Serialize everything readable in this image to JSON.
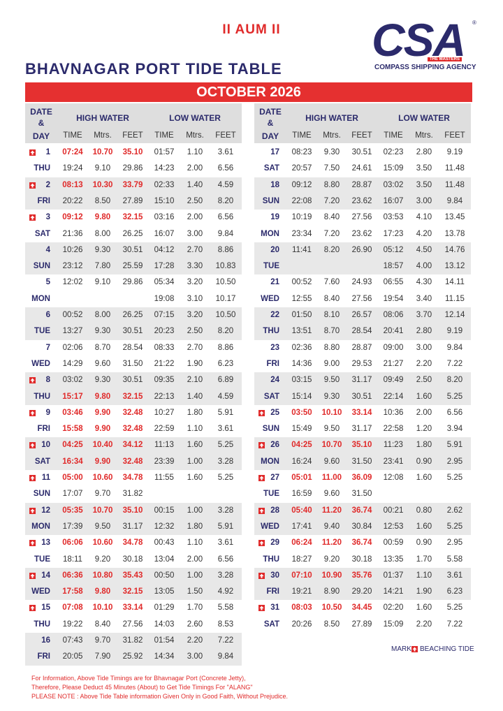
{
  "header": {
    "invocation": "II AUM II",
    "logo": {
      "mark": "CSA",
      "registered": "®",
      "tagline": "THE MASTERS",
      "company": "COMPASS SHIPPING AGENCY"
    },
    "title": "BHAVNAGAR PORT TIDE TABLE",
    "month": "OCTOBER 2026"
  },
  "table": {
    "columns": {
      "date": "DATE",
      "amp": "&",
      "day": "DAY",
      "high_water": "HIGH WATER",
      "low_water": "LOW WATER",
      "time": "TIME",
      "mtrs": "Mtrs.",
      "feet": "FEET"
    },
    "halves": [
      {
        "days": [
          {
            "date": "1",
            "day": "THU",
            "beaching": true,
            "highlight": [
              true,
              false
            ],
            "rows": [
              [
                "07:24",
                "10.70",
                "35.10",
                "01:57",
                "1.10",
                "3.61"
              ],
              [
                "19:24",
                "9.10",
                "29.86",
                "14:23",
                "2.00",
                "6.56"
              ]
            ]
          },
          {
            "date": "2",
            "day": "FRI",
            "beaching": true,
            "highlight": [
              true,
              false
            ],
            "rows": [
              [
                "08:13",
                "10.30",
                "33.79",
                "02:33",
                "1.40",
                "4.59"
              ],
              [
                "20:22",
                "8.50",
                "27.89",
                "15:10",
                "2.50",
                "8.20"
              ]
            ]
          },
          {
            "date": "3",
            "day": "SAT",
            "beaching": true,
            "highlight": [
              true,
              false
            ],
            "rows": [
              [
                "09:12",
                "9.80",
                "32.15",
                "03:16",
                "2.00",
                "6.56"
              ],
              [
                "21:36",
                "8.00",
                "26.25",
                "16:07",
                "3.00",
                "9.84"
              ]
            ]
          },
          {
            "date": "4",
            "day": "SUN",
            "beaching": false,
            "highlight": [
              false,
              false
            ],
            "rows": [
              [
                "10:26",
                "9.30",
                "30.51",
                "04:12",
                "2.70",
                "8.86"
              ],
              [
                "23:12",
                "7.80",
                "25.59",
                "17:28",
                "3.30",
                "10.83"
              ]
            ]
          },
          {
            "date": "5",
            "day": "MON",
            "beaching": false,
            "highlight": [
              false,
              false
            ],
            "rows": [
              [
                "12:02",
                "9.10",
                "29.86",
                "05:34",
                "3.20",
                "10.50"
              ],
              [
                null,
                null,
                null,
                "19:08",
                "3.10",
                "10.17"
              ]
            ]
          },
          {
            "date": "6",
            "day": "TUE",
            "beaching": false,
            "highlight": [
              false,
              false
            ],
            "rows": [
              [
                "00:52",
                "8.00",
                "26.25",
                "07:15",
                "3.20",
                "10.50"
              ],
              [
                "13:27",
                "9.30",
                "30.51",
                "20:23",
                "2.50",
                "8.20"
              ]
            ]
          },
          {
            "date": "7",
            "day": "WED",
            "beaching": false,
            "highlight": [
              false,
              false
            ],
            "rows": [
              [
                "02:06",
                "8.70",
                "28.54",
                "08:33",
                "2.70",
                "8.86"
              ],
              [
                "14:29",
                "9.60",
                "31.50",
                "21:22",
                "1.90",
                "6.23"
              ]
            ]
          },
          {
            "date": "8",
            "day": "THU",
            "beaching": true,
            "highlight": [
              false,
              true
            ],
            "rows": [
              [
                "03:02",
                "9.30",
                "30.51",
                "09:35",
                "2.10",
                "6.89"
              ],
              [
                "15:17",
                "9.80",
                "32.15",
                "22:13",
                "1.40",
                "4.59"
              ]
            ]
          },
          {
            "date": "9",
            "day": "FRI",
            "beaching": true,
            "highlight": [
              true,
              true
            ],
            "rows": [
              [
                "03:46",
                "9.90",
                "32.48",
                "10:27",
                "1.80",
                "5.91"
              ],
              [
                "15:58",
                "9.90",
                "32.48",
                "22:59",
                "1.10",
                "3.61"
              ]
            ]
          },
          {
            "date": "10",
            "day": "SAT",
            "beaching": true,
            "highlight": [
              true,
              true
            ],
            "rows": [
              [
                "04:25",
                "10.40",
                "34.12",
                "11:13",
                "1.60",
                "5.25"
              ],
              [
                "16:34",
                "9.90",
                "32.48",
                "23:39",
                "1.00",
                "3.28"
              ]
            ]
          },
          {
            "date": "11",
            "day": "SUN",
            "beaching": true,
            "highlight": [
              true,
              false
            ],
            "rows": [
              [
                "05:00",
                "10.60",
                "34.78",
                "11:55",
                "1.60",
                "5.25"
              ],
              [
                "17:07",
                "9.70",
                "31.82",
                null,
                null,
                null
              ]
            ]
          },
          {
            "date": "12",
            "day": "MON",
            "beaching": true,
            "highlight": [
              true,
              false
            ],
            "rows": [
              [
                "05:35",
                "10.70",
                "35.10",
                "00:15",
                "1.00",
                "3.28"
              ],
              [
                "17:39",
                "9.50",
                "31.17",
                "12:32",
                "1.80",
                "5.91"
              ]
            ]
          },
          {
            "date": "13",
            "day": "TUE",
            "beaching": true,
            "highlight": [
              true,
              false
            ],
            "rows": [
              [
                "06:06",
                "10.60",
                "34.78",
                "00:43",
                "1.10",
                "3.61"
              ],
              [
                "18:11",
                "9.20",
                "30.18",
                "13:04",
                "2.00",
                "6.56"
              ]
            ]
          },
          {
            "date": "14",
            "day": "WED",
            "beaching": true,
            "highlight": [
              true,
              true
            ],
            "rows": [
              [
                "06:36",
                "10.80",
                "35.43",
                "00:50",
                "1.00",
                "3.28"
              ],
              [
                "17:58",
                "9.80",
                "32.15",
                "13:05",
                "1.50",
                "4.92"
              ]
            ]
          },
          {
            "date": "15",
            "day": "THU",
            "beaching": true,
            "highlight": [
              true,
              false
            ],
            "rows": [
              [
                "07:08",
                "10.10",
                "33.14",
                "01:29",
                "1.70",
                "5.58"
              ],
              [
                "19:22",
                "8.40",
                "27.56",
                "14:03",
                "2.60",
                "8.53"
              ]
            ]
          },
          {
            "date": "16",
            "day": "FRI",
            "beaching": false,
            "highlight": [
              false,
              false
            ],
            "rows": [
              [
                "07:43",
                "9.70",
                "31.82",
                "01:54",
                "2.20",
                "7.22"
              ],
              [
                "20:05",
                "7.90",
                "25.92",
                "14:34",
                "3.00",
                "9.84"
              ]
            ]
          }
        ]
      },
      {
        "days": [
          {
            "date": "17",
            "day": "SAT",
            "beaching": false,
            "highlight": [
              false,
              false
            ],
            "rows": [
              [
                "08:23",
                "9.30",
                "30.51",
                "02:23",
                "2.80",
                "9.19"
              ],
              [
                "20:57",
                "7.50",
                "24.61",
                "15:09",
                "3.50",
                "11.48"
              ]
            ]
          },
          {
            "date": "18",
            "day": "SUN",
            "beaching": false,
            "highlight": [
              false,
              false
            ],
            "rows": [
              [
                "09:12",
                "8.80",
                "28.87",
                "03:02",
                "3.50",
                "11.48"
              ],
              [
                "22:08",
                "7.20",
                "23.62",
                "16:07",
                "3.00",
                "9.84"
              ]
            ]
          },
          {
            "date": "19",
            "day": "MON",
            "beaching": false,
            "highlight": [
              false,
              false
            ],
            "rows": [
              [
                "10:19",
                "8.40",
                "27.56",
                "03:53",
                "4.10",
                "13.45"
              ],
              [
                "23:34",
                "7.20",
                "23.62",
                "17:23",
                "4.20",
                "13.78"
              ]
            ]
          },
          {
            "date": "20",
            "day": "TUE",
            "beaching": false,
            "highlight": [
              false,
              false
            ],
            "rows": [
              [
                "11:41",
                "8.20",
                "26.90",
                "05:12",
                "4.50",
                "14.76"
              ],
              [
                null,
                null,
                null,
                "18:57",
                "4.00",
                "13.12"
              ]
            ]
          },
          {
            "date": "21",
            "day": "WED",
            "beaching": false,
            "highlight": [
              false,
              false
            ],
            "rows": [
              [
                "00:52",
                "7.60",
                "24.93",
                "06:55",
                "4.30",
                "14.11"
              ],
              [
                "12:55",
                "8.40",
                "27.56",
                "19:54",
                "3.40",
                "11.15"
              ]
            ]
          },
          {
            "date": "22",
            "day": "THU",
            "beaching": false,
            "highlight": [
              false,
              false
            ],
            "rows": [
              [
                "01:50",
                "8.10",
                "26.57",
                "08:06",
                "3.70",
                "12.14"
              ],
              [
                "13:51",
                "8.70",
                "28.54",
                "20:41",
                "2.80",
                "9.19"
              ]
            ]
          },
          {
            "date": "23",
            "day": "FRI",
            "beaching": false,
            "highlight": [
              false,
              false
            ],
            "rows": [
              [
                "02:36",
                "8.80",
                "28.87",
                "09:00",
                "3.00",
                "9.84"
              ],
              [
                "14:36",
                "9.00",
                "29.53",
                "21:27",
                "2.20",
                "7.22"
              ]
            ]
          },
          {
            "date": "24",
            "day": "SAT",
            "beaching": false,
            "highlight": [
              false,
              false
            ],
            "rows": [
              [
                "03:15",
                "9.50",
                "31.17",
                "09:49",
                "2.50",
                "8.20"
              ],
              [
                "15:14",
                "9.30",
                "30.51",
                "22:14",
                "1.60",
                "5.25"
              ]
            ]
          },
          {
            "date": "25",
            "day": "SUN",
            "beaching": true,
            "highlight": [
              true,
              false
            ],
            "rows": [
              [
                "03:50",
                "10.10",
                "33.14",
                "10:36",
                "2.00",
                "6.56"
              ],
              [
                "15:49",
                "9.50",
                "31.17",
                "22:58",
                "1.20",
                "3.94"
              ]
            ]
          },
          {
            "date": "26",
            "day": "MON",
            "beaching": true,
            "highlight": [
              true,
              false
            ],
            "rows": [
              [
                "04:25",
                "10.70",
                "35.10",
                "11:23",
                "1.80",
                "5.91"
              ],
              [
                "16:24",
                "9.60",
                "31.50",
                "23:41",
                "0.90",
                "2.95"
              ]
            ]
          },
          {
            "date": "27",
            "day": "TUE",
            "beaching": true,
            "highlight": [
              true,
              false
            ],
            "rows": [
              [
                "05:01",
                "11.00",
                "36.09",
                "12:08",
                "1.60",
                "5.25"
              ],
              [
                "16:59",
                "9.60",
                "31.50",
                null,
                null,
                null
              ]
            ]
          },
          {
            "date": "28",
            "day": "WED",
            "beaching": true,
            "highlight": [
              true,
              false
            ],
            "rows": [
              [
                "05:40",
                "11.20",
                "36.74",
                "00:21",
                "0.80",
                "2.62"
              ],
              [
                "17:41",
                "9.40",
                "30.84",
                "12:53",
                "1.60",
                "5.25"
              ]
            ]
          },
          {
            "date": "29",
            "day": "THU",
            "beaching": true,
            "highlight": [
              true,
              false
            ],
            "rows": [
              [
                "06:24",
                "11.20",
                "36.74",
                "00:59",
                "0.90",
                "2.95"
              ],
              [
                "18:27",
                "9.20",
                "30.18",
                "13:35",
                "1.70",
                "5.58"
              ]
            ]
          },
          {
            "date": "30",
            "day": "FRI",
            "beaching": true,
            "highlight": [
              true,
              false
            ],
            "rows": [
              [
                "07:10",
                "10.90",
                "35.76",
                "01:37",
                "1.10",
                "3.61"
              ],
              [
                "19:21",
                "8.90",
                "29.20",
                "14:21",
                "1.90",
                "6.23"
              ]
            ]
          },
          {
            "date": "31",
            "day": "SAT",
            "beaching": true,
            "highlight": [
              true,
              false
            ],
            "rows": [
              [
                "08:03",
                "10.50",
                "34.45",
                "02:20",
                "1.60",
                "5.25"
              ],
              [
                "20:26",
                "8.50",
                "27.89",
                "15:09",
                "2.20",
                "7.22"
              ]
            ]
          }
        ]
      }
    ]
  },
  "legend": {
    "mark": "MARK",
    "label": "BEACHING TIDE"
  },
  "notes": [
    "For Information, Above Tide Timings are for Bhavnagar Port (Concrete Jetty),",
    "Therefore, Please Deduct 45 Minutes (About) to Get Tide Timings For \"ALANG\"",
    "PLEASE NOTE : Above Tide Table information Given Only in Good Faith, Without Prejudice."
  ]
}
